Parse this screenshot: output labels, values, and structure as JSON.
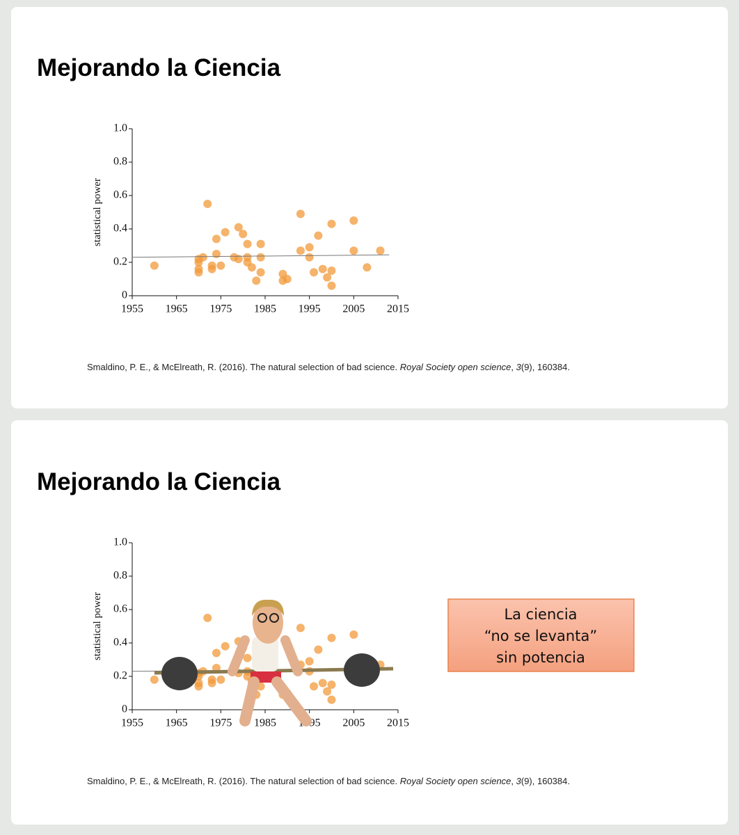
{
  "slides": [
    {
      "title": "Mejorando la Ciencia",
      "citation": [
        "Smaldino, P. E., & McElreath, R. (2016). The natural selection of bad science. ",
        "Royal Society open science",
        ", ",
        "3",
        "(9), 160384."
      ]
    },
    {
      "title": "Mejorando la Ciencia",
      "citation": [
        "Smaldino, P. E., & McElreath, R. (2016). The natural selection of bad science. ",
        "Royal Society open science",
        ", ",
        "3",
        "(9), 160384."
      ],
      "callout": [
        "La ciencia",
        "“no se levanta”",
        "sin potencia"
      ]
    }
  ],
  "chart_data": [
    {
      "type": "scatter",
      "y_label": "statistical power",
      "color": "#f29a3a",
      "x": [
        1960,
        1970,
        1970,
        1970,
        1970,
        1971,
        1972,
        1973,
        1973,
        1974,
        1974,
        1975,
        1976,
        1978,
        1979,
        1979,
        1980,
        1981,
        1981,
        1981,
        1982,
        1983,
        1984,
        1984,
        1984,
        1989,
        1989,
        1990,
        1993,
        1993,
        1995,
        1995,
        1996,
        1997,
        1998,
        1999,
        2000,
        2000,
        2000,
        2005,
        2005,
        2008,
        2011
      ],
      "values": [
        0.18,
        0.2,
        0.22,
        0.14,
        0.16,
        0.23,
        0.55,
        0.18,
        0.16,
        0.34,
        0.25,
        0.18,
        0.38,
        0.23,
        0.41,
        0.22,
        0.37,
        0.31,
        0.23,
        0.2,
        0.17,
        0.09,
        0.31,
        0.23,
        0.14,
        0.13,
        0.09,
        0.1,
        0.49,
        0.27,
        0.29,
        0.23,
        0.14,
        0.36,
        0.16,
        0.11,
        0.43,
        0.15,
        0.06,
        0.45,
        0.27,
        0.17,
        0.27
      ],
      "trend_line": {
        "x": [
          1955,
          2013
        ],
        "values": [
          0.23,
          0.245
        ]
      },
      "xlim": [
        1955,
        2015
      ],
      "xticks": [
        1955,
        1965,
        1975,
        1985,
        1995,
        2005,
        2015
      ],
      "ylim": [
        0,
        1
      ],
      "yticks": [
        0,
        0.2,
        0.4,
        0.6,
        0.8,
        {
          "value": 1,
          "label": "1.0"
        }
      ]
    },
    {
      "type": "scatter",
      "y_label": "statistical power",
      "color": "#f29a3a",
      "x": [
        1960,
        1970,
        1970,
        1970,
        1970,
        1971,
        1972,
        1973,
        1973,
        1974,
        1974,
        1975,
        1976,
        1978,
        1979,
        1979,
        1980,
        1981,
        1981,
        1981,
        1982,
        1983,
        1984,
        1984,
        1984,
        1989,
        1989,
        1990,
        1993,
        1993,
        1995,
        1995,
        1996,
        1997,
        1998,
        1999,
        2000,
        2000,
        2000,
        2005,
        2005,
        2008,
        2011
      ],
      "values": [
        0.18,
        0.2,
        0.22,
        0.14,
        0.16,
        0.23,
        0.55,
        0.18,
        0.16,
        0.34,
        0.25,
        0.18,
        0.38,
        0.23,
        0.41,
        0.22,
        0.37,
        0.31,
        0.23,
        0.2,
        0.17,
        0.09,
        0.31,
        0.23,
        0.14,
        0.13,
        0.09,
        0.1,
        0.49,
        0.27,
        0.29,
        0.23,
        0.14,
        0.36,
        0.16,
        0.11,
        0.43,
        0.15,
        0.06,
        0.45,
        0.27,
        0.17,
        0.27
      ],
      "trend_line": {
        "x": [
          1955,
          2013
        ],
        "values": [
          0.23,
          0.245
        ]
      },
      "xlim": [
        1955,
        2015
      ],
      "xticks": [
        1955,
        1965,
        1975,
        1985,
        1995,
        2005,
        2015
      ],
      "ylim": [
        0,
        1
      ],
      "yticks": [
        0,
        0.2,
        0.4,
        0.6,
        0.8,
        {
          "value": 1,
          "label": "1.0"
        }
      ]
    }
  ]
}
